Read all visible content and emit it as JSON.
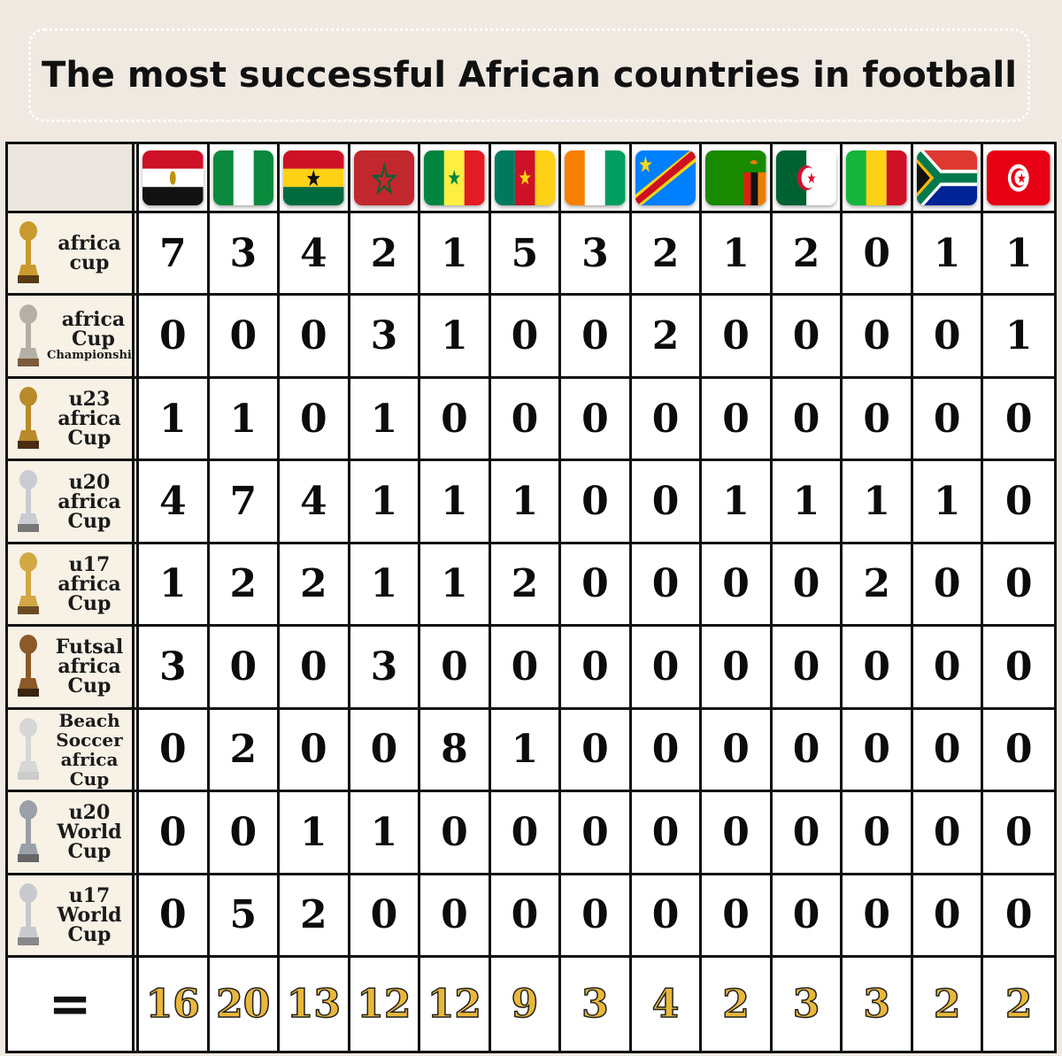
{
  "title": "The most successful African countries in football",
  "total_label": "=",
  "countries": [
    {
      "flag": "egypt-flag"
    },
    {
      "flag": "nigeria-flag"
    },
    {
      "flag": "ghana-flag"
    },
    {
      "flag": "morocco-flag"
    },
    {
      "flag": "senegal-flag"
    },
    {
      "flag": "cameroon-flag"
    },
    {
      "flag": "ivory-coast-flag"
    },
    {
      "flag": "dr-congo-flag"
    },
    {
      "flag": "zambia-flag"
    },
    {
      "flag": "algeria-flag"
    },
    {
      "flag": "mali-flag"
    },
    {
      "flag": "south-africa-flag"
    },
    {
      "flag": "tunisia-flag"
    }
  ],
  "competitions": [
    {
      "lines": [
        "africa",
        "cup"
      ],
      "values": [
        "7",
        "3",
        "4",
        "2",
        "1",
        "5",
        "3",
        "2",
        "1",
        "2",
        "0",
        "1",
        "1"
      ]
    },
    {
      "lines": [
        "africa",
        "Cup",
        "Championship"
      ],
      "values": [
        "0",
        "0",
        "0",
        "3",
        "1",
        "0",
        "0",
        "2",
        "0",
        "0",
        "0",
        "0",
        "1"
      ]
    },
    {
      "lines": [
        "u23",
        "africa",
        "Cup"
      ],
      "values": [
        "1",
        "1",
        "0",
        "1",
        "0",
        "0",
        "0",
        "0",
        "0",
        "0",
        "0",
        "0",
        "0"
      ]
    },
    {
      "lines": [
        "u20",
        "africa",
        "Cup"
      ],
      "values": [
        "4",
        "7",
        "4",
        "1",
        "1",
        "1",
        "0",
        "0",
        "1",
        "1",
        "1",
        "1",
        "0"
      ]
    },
    {
      "lines": [
        "u17",
        "africa",
        "Cup"
      ],
      "values": [
        "1",
        "2",
        "2",
        "1",
        "1",
        "2",
        "0",
        "0",
        "0",
        "0",
        "2",
        "0",
        "0"
      ]
    },
    {
      "lines": [
        "Futsal",
        "africa",
        "Cup"
      ],
      "values": [
        "3",
        "0",
        "0",
        "3",
        "0",
        "0",
        "0",
        "0",
        "0",
        "0",
        "0",
        "0",
        "0"
      ]
    },
    {
      "lines": [
        "Beach",
        "Soccer",
        "africa",
        "Cup"
      ],
      "values": [
        "0",
        "2",
        "0",
        "0",
        "8",
        "1",
        "0",
        "0",
        "0",
        "0",
        "0",
        "0",
        "0"
      ]
    },
    {
      "lines": [
        "u20",
        "World",
        "Cup"
      ],
      "values": [
        "0",
        "0",
        "1",
        "1",
        "0",
        "0",
        "0",
        "0",
        "0",
        "0",
        "0",
        "0",
        "0"
      ]
    },
    {
      "lines": [
        "u17",
        "World",
        "Cup"
      ],
      "values": [
        "0",
        "5",
        "2",
        "0",
        "0",
        "0",
        "0",
        "0",
        "0",
        "0",
        "0",
        "0",
        "0"
      ]
    }
  ],
  "totals": [
    "16",
    "20",
    "13",
    "12",
    "12",
    "9",
    "3",
    "4",
    "2",
    "3",
    "3",
    "2",
    "2"
  ]
}
